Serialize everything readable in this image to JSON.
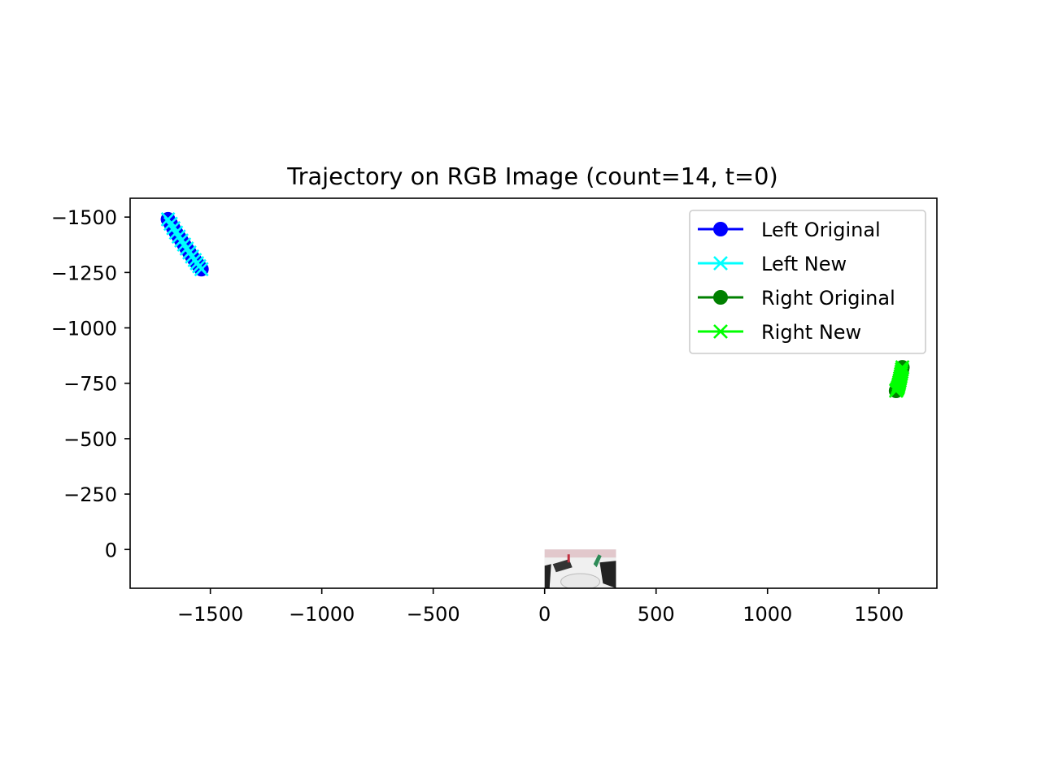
{
  "chart_data": {
    "type": "line",
    "title": "Trajectory on RGB Image (count=14, t=0)",
    "xlabel": "",
    "ylabel": "",
    "xlim": [
      -1860,
      1760
    ],
    "ylim": [
      175,
      -1585
    ],
    "y_inverted": true,
    "xticks": [
      -1500,
      -1000,
      -500,
      0,
      500,
      1000,
      1500
    ],
    "yticks": [
      -1500,
      -1250,
      -1000,
      -750,
      -500,
      -250,
      0
    ],
    "grid": false,
    "legend_position": "top-right",
    "series": [
      {
        "name": "Left Original",
        "color": "#0000ff",
        "marker": "circle",
        "x": [
          -1690,
          -1678,
          -1666,
          -1654,
          -1642,
          -1630,
          -1618,
          -1606,
          -1594,
          -1582,
          -1570,
          -1560,
          -1550,
          -1540
        ],
        "y": [
          -1490,
          -1470,
          -1450,
          -1430,
          -1412,
          -1394,
          -1376,
          -1358,
          -1340,
          -1322,
          -1306,
          -1292,
          -1278,
          -1265
        ]
      },
      {
        "name": "Left New",
        "color": "#00ffff",
        "marker": "x",
        "x": [
          -1690,
          -1678,
          -1666,
          -1654,
          -1642,
          -1630,
          -1618,
          -1606,
          -1594,
          -1582,
          -1570,
          -1560,
          -1550,
          -1540
        ],
        "y": [
          -1490,
          -1470,
          -1450,
          -1430,
          -1412,
          -1394,
          -1376,
          -1358,
          -1340,
          -1322,
          -1306,
          -1292,
          -1278,
          -1265
        ]
      },
      {
        "name": "Right Original",
        "color": "#008000",
        "marker": "circle",
        "x": [
          1605,
          1603,
          1601,
          1599,
          1597,
          1595,
          1593,
          1591,
          1589,
          1587,
          1585,
          1582,
          1579,
          1577
        ],
        "y": [
          -822,
          -812,
          -802,
          -792,
          -782,
          -772,
          -763,
          -754,
          -746,
          -738,
          -731,
          -725,
          -720,
          -716
        ]
      },
      {
        "name": "Right New",
        "color": "#00ff00",
        "marker": "x",
        "x": [
          1605,
          1603,
          1601,
          1599,
          1597,
          1595,
          1593,
          1591,
          1589,
          1587,
          1585,
          1582,
          1579,
          1577
        ],
        "y": [
          -822,
          -812,
          -802,
          -792,
          -782,
          -772,
          -763,
          -754,
          -746,
          -738,
          -731,
          -725,
          -720,
          -716
        ]
      }
    ],
    "background_image": {
      "description_icon": "rgb-robot-scene-image",
      "extent_x": [
        0,
        320
      ],
      "extent_y": [
        0,
        175
      ]
    }
  }
}
